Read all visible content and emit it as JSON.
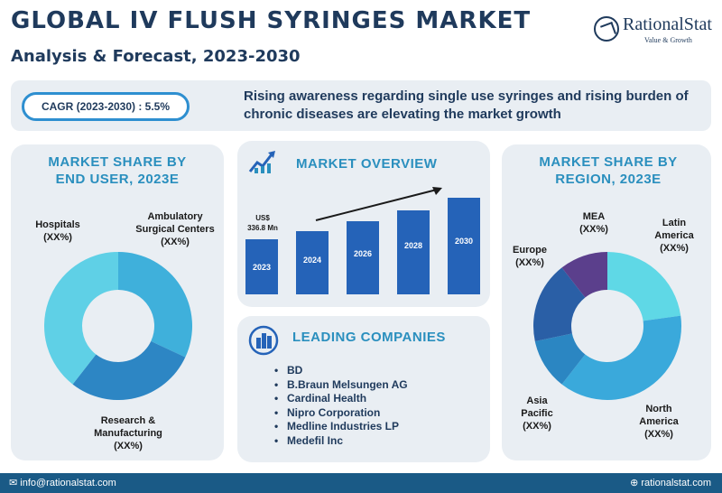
{
  "header": {
    "title": "GLOBAL IV FLUSH SYRINGES MARKET",
    "subtitle": "Analysis & Forecast, 2023-2030"
  },
  "logo": {
    "name": "RationalStat",
    "tagline": "Value & Growth"
  },
  "banner": {
    "cagr": "CAGR (2023-2030) : 5.5%",
    "text": "Rising awareness regarding single use syringes and rising burden of chronic diseases are elevating the market growth"
  },
  "end_user": {
    "heading_line1": "MARKET SHARE BY",
    "heading_line2": "END USER, 2023E",
    "labels": {
      "hospitals": [
        "Hospitals",
        "(XX%)"
      ],
      "ambulatory": [
        "Ambulatory",
        "Surgical Centers",
        "(XX%)"
      ],
      "research": [
        "Research &",
        "Manufacturing",
        "(XX%)"
      ]
    },
    "colors": [
      "#3fb0db",
      "#2d86c4",
      "#5fd0e6"
    ]
  },
  "overview": {
    "heading": "MARKET OVERVIEW",
    "base_value": [
      "US$",
      "336.8 Mn"
    ],
    "years": [
      "2023",
      "2024",
      "2026",
      "2028",
      "2030"
    ],
    "bar_color": "#2563b8"
  },
  "companies": {
    "heading": "LEADING COMPANIES",
    "items": [
      "BD",
      "B.Braun Melsungen AG",
      "Cardinal Health",
      "Nipro Corporation",
      "Medline Industries LP",
      "Medefil Inc"
    ]
  },
  "region": {
    "heading_line1": "MARKET SHARE BY",
    "heading_line2": "REGION, 2023E",
    "labels": {
      "mea": [
        "MEA",
        "(XX%)"
      ],
      "latin_america": [
        "Latin",
        "America",
        "(XX%)"
      ],
      "europe": [
        "Europe",
        "(XX%)"
      ],
      "asia_pacific": [
        "Asia",
        "Pacific",
        "(XX%)"
      ],
      "north_america": [
        "North",
        "America",
        "(XX%)"
      ]
    },
    "colors": {
      "mea": "#5b3f8c",
      "latin_america": "#5fd8e6",
      "north_america": "#3aa9db",
      "asia_pacific": "#2b86c2",
      "europe": "#2a5fa6"
    }
  },
  "footer": {
    "email": "info@rationalstat.com",
    "website": "rationalstat.com"
  }
}
